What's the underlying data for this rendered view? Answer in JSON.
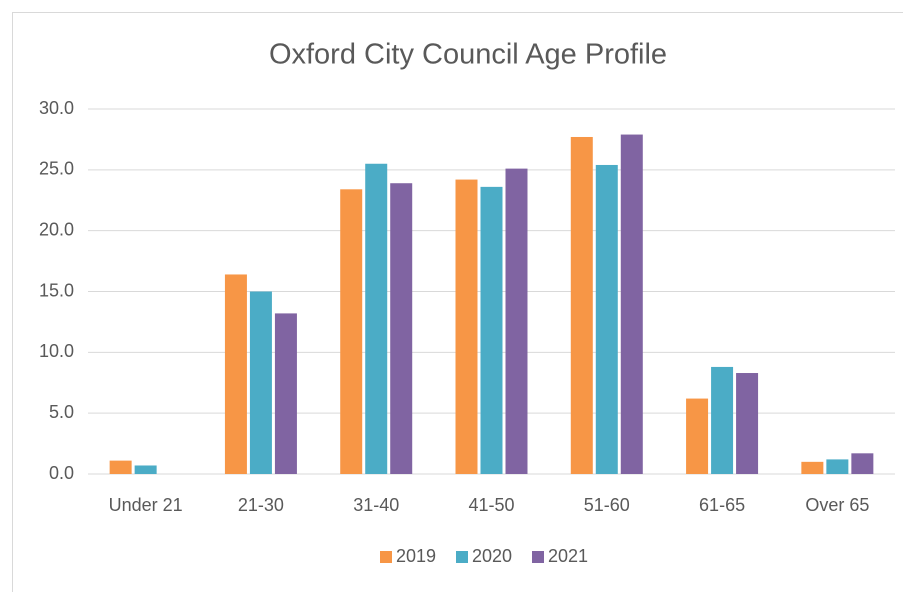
{
  "chart_data": {
    "type": "bar",
    "title": "Oxford City Council Age Profile",
    "categories": [
      "Under 21",
      "21-30",
      "31-40",
      "41-50",
      "51-60",
      "61-65",
      "Over 65"
    ],
    "series": [
      {
        "name": "2019",
        "color": "#f79646",
        "values": [
          1.1,
          16.4,
          23.4,
          24.2,
          27.7,
          6.2,
          1.0
        ]
      },
      {
        "name": "2020",
        "color": "#4bacc6",
        "values": [
          0.7,
          15.0,
          25.5,
          23.6,
          25.4,
          8.8,
          1.2
        ]
      },
      {
        "name": "2021",
        "color": "#8064a2",
        "values": [
          0,
          13.2,
          23.9,
          25.1,
          27.9,
          8.3,
          1.7
        ]
      }
    ],
    "ylim": [
      0,
      30
    ],
    "yticks": [
      {
        "value": 0,
        "label": "0.0"
      },
      {
        "value": 5,
        "label": "5.0"
      },
      {
        "value": 10,
        "label": "10.0"
      },
      {
        "value": 15,
        "label": "15.0"
      },
      {
        "value": 20,
        "label": "20.0"
      },
      {
        "value": 25,
        "label": "25.0"
      },
      {
        "value": 30,
        "label": "30.0"
      }
    ],
    "grid": true,
    "legend": "bottom"
  }
}
